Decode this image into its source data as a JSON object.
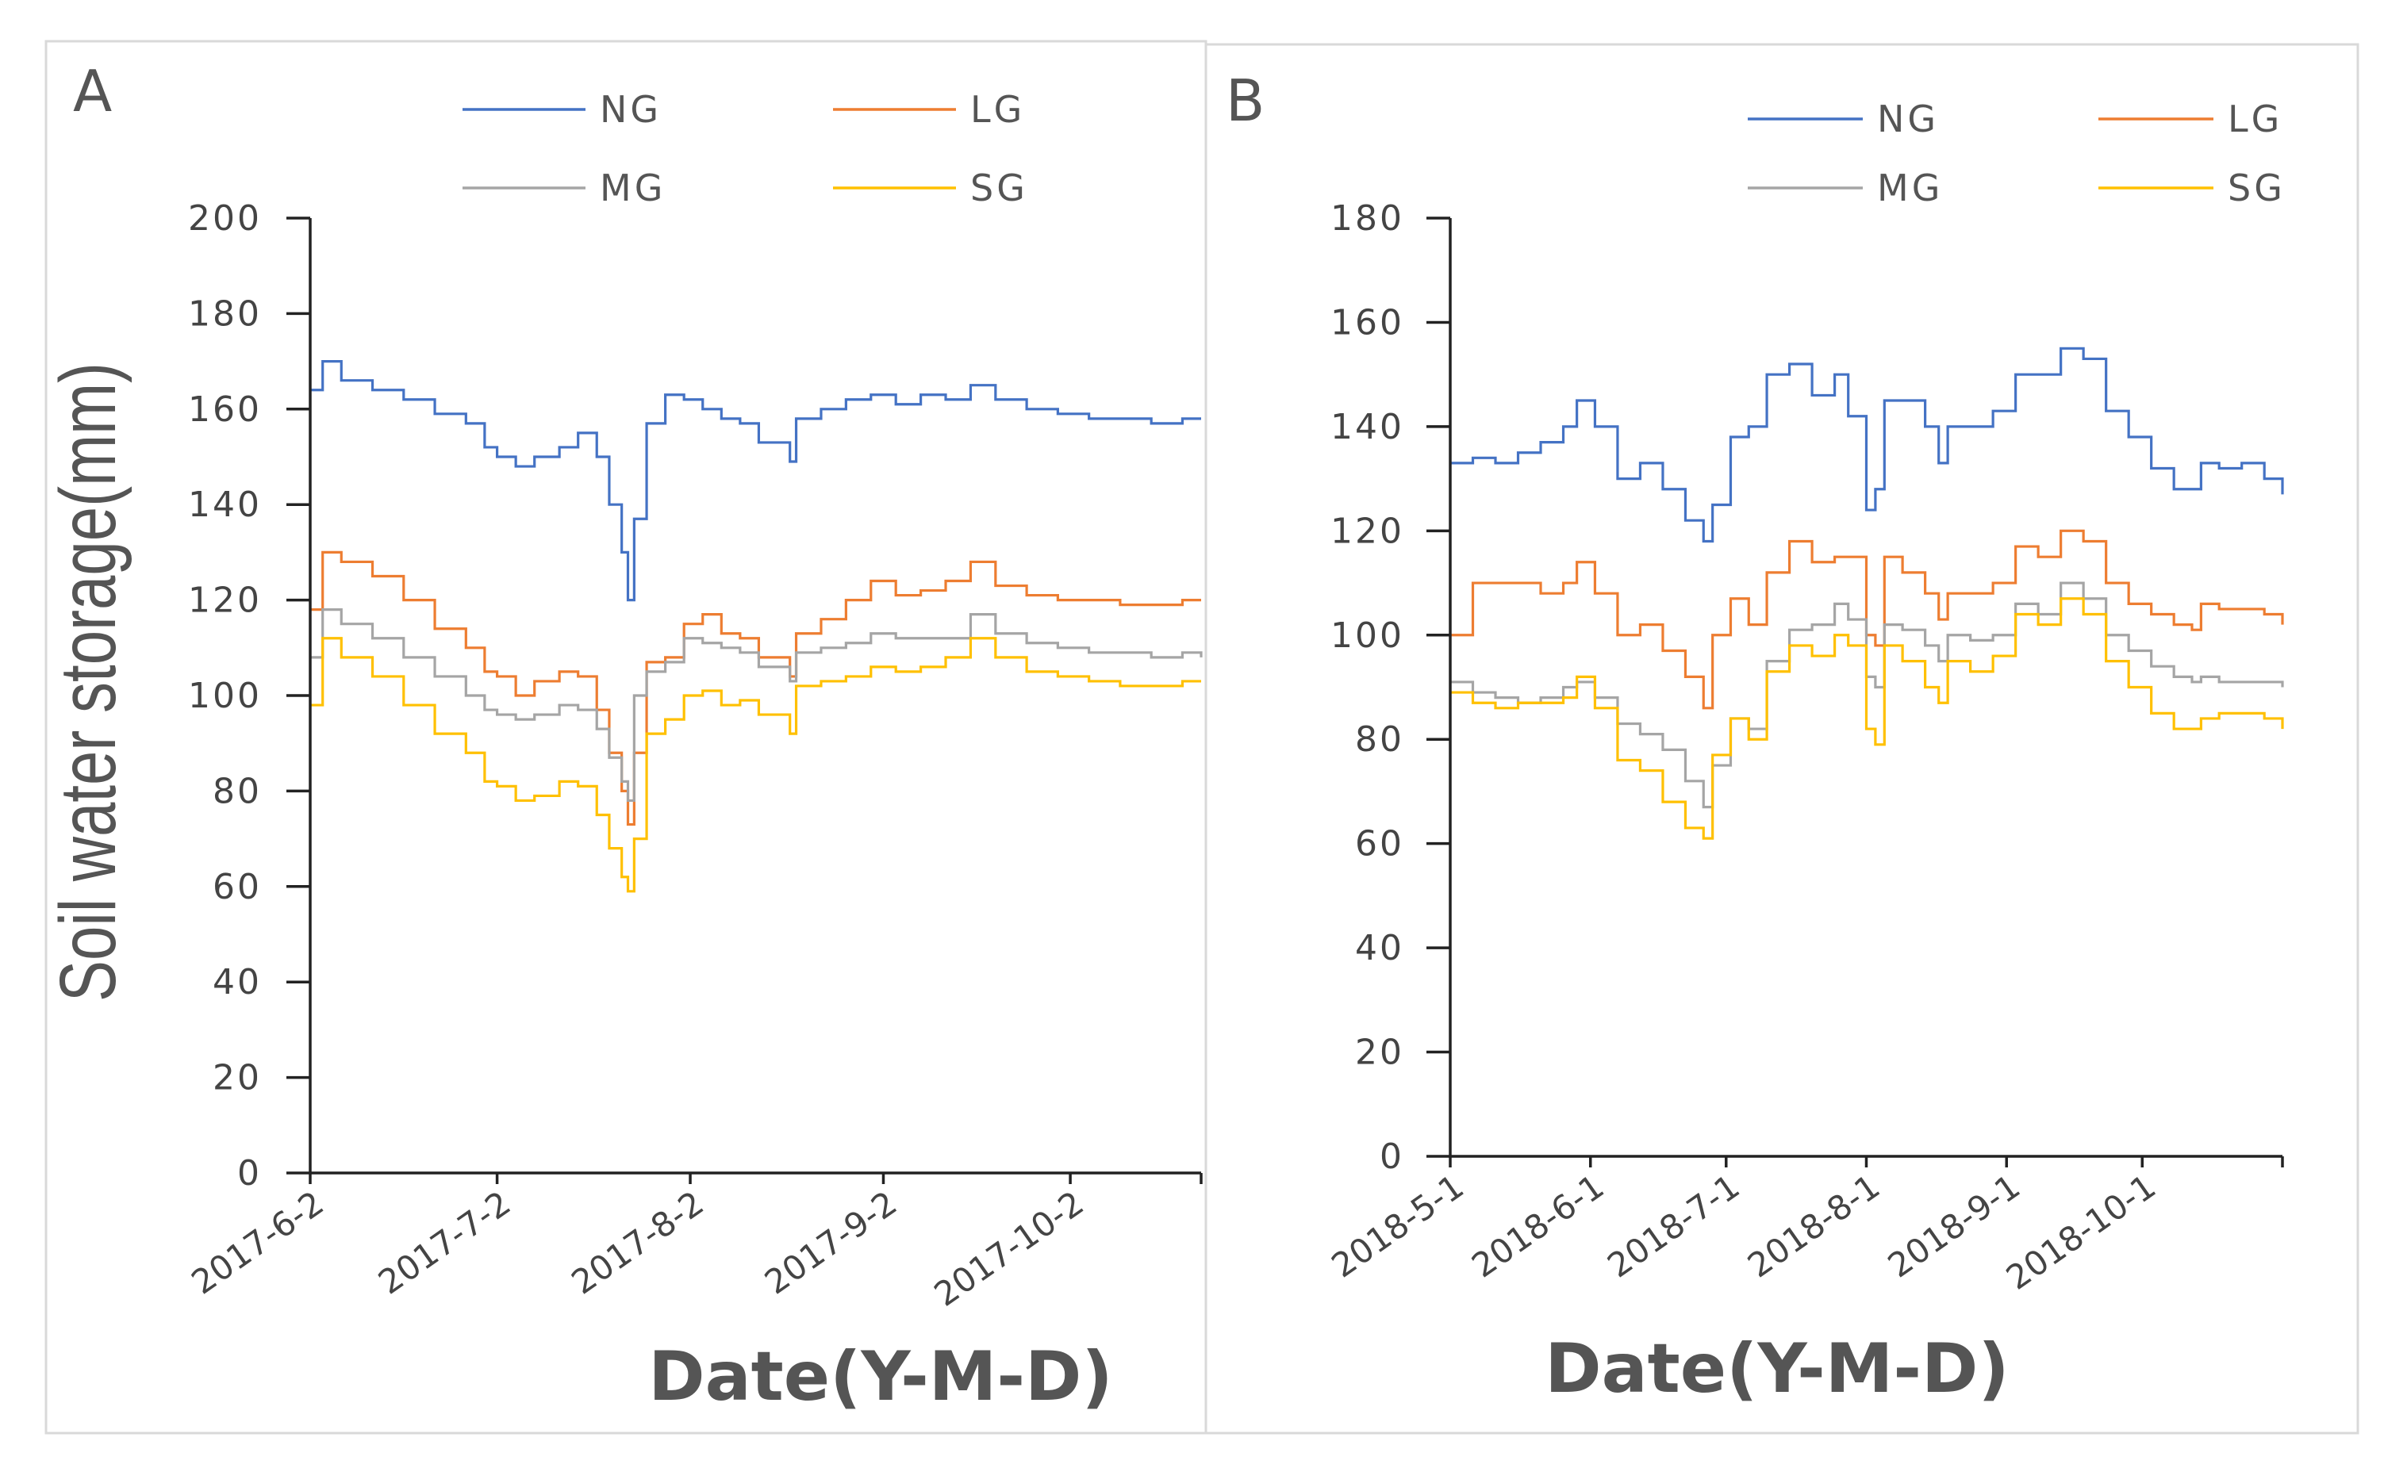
{
  "colors": {
    "NG": "#4472C4",
    "LG": "#ED7D31",
    "MG": "#A5A5A5",
    "SG": "#FFC000"
  },
  "chart_data": [
    {
      "type": "line",
      "panel_label": "A",
      "ylabel": "Soil water storage(mm)",
      "xlabel": "Date(Y-M-D)",
      "ylim": [
        0,
        200
      ],
      "yticks": [
        0,
        20,
        40,
        60,
        80,
        100,
        120,
        140,
        160,
        180,
        200
      ],
      "x_unit": "days since 2017-6-2",
      "xlim": [
        0,
        143
      ],
      "xticks": [
        {
          "label": "2017-6-2",
          "day": 0
        },
        {
          "label": "2017-7-2",
          "day": 30
        },
        {
          "label": "2017-8-2",
          "day": 61
        },
        {
          "label": "2017-9-2",
          "day": 92
        },
        {
          "label": "2017-10-2",
          "day": 122
        }
      ],
      "legend": [
        "NG",
        "LG",
        "MG",
        "SG"
      ],
      "legend_position": "top",
      "x": [
        0,
        2,
        5,
        10,
        15,
        20,
        25,
        28,
        30,
        33,
        36,
        40,
        43,
        46,
        48,
        50,
        51,
        52,
        54,
        57,
        60,
        63,
        66,
        69,
        72,
        77,
        78,
        82,
        86,
        90,
        94,
        98,
        102,
        106,
        110,
        115,
        120,
        125,
        130,
        135,
        140,
        143
      ],
      "series": [
        {
          "name": "NG",
          "values": [
            164,
            170,
            166,
            164,
            162,
            159,
            157,
            152,
            150,
            148,
            150,
            152,
            155,
            150,
            140,
            130,
            120,
            137,
            157,
            163,
            162,
            160,
            158,
            157,
            153,
            149,
            158,
            160,
            162,
            163,
            161,
            163,
            162,
            165,
            162,
            160,
            159,
            158,
            158,
            157,
            158,
            158
          ]
        },
        {
          "name": "LG",
          "values": [
            118,
            130,
            128,
            125,
            120,
            114,
            110,
            105,
            104,
            100,
            103,
            105,
            104,
            97,
            88,
            80,
            73,
            88,
            107,
            108,
            115,
            117,
            113,
            112,
            108,
            104,
            113,
            116,
            120,
            124,
            121,
            122,
            124,
            128,
            123,
            121,
            120,
            120,
            119,
            119,
            120,
            120
          ]
        },
        {
          "name": "MG",
          "values": [
            108,
            118,
            115,
            112,
            108,
            104,
            100,
            97,
            96,
            95,
            96,
            98,
            97,
            93,
            87,
            82,
            78,
            100,
            105,
            107,
            112,
            111,
            110,
            109,
            106,
            103,
            109,
            110,
            111,
            113,
            112,
            112,
            112,
            117,
            113,
            111,
            110,
            109,
            109,
            108,
            109,
            108
          ]
        },
        {
          "name": "SG",
          "values": [
            98,
            112,
            108,
            104,
            98,
            92,
            88,
            82,
            81,
            78,
            79,
            82,
            81,
            75,
            68,
            62,
            59,
            70,
            92,
            95,
            100,
            101,
            98,
            99,
            96,
            92,
            102,
            103,
            104,
            106,
            105,
            106,
            108,
            112,
            108,
            105,
            104,
            103,
            102,
            102,
            103,
            103
          ]
        }
      ]
    },
    {
      "type": "line",
      "panel_label": "B",
      "ylabel": "",
      "xlabel": "Date(Y-M-D)",
      "ylim": [
        0,
        180
      ],
      "yticks": [
        0,
        20,
        40,
        60,
        80,
        100,
        120,
        140,
        160,
        180
      ],
      "x_unit": "days since 2018-5-1",
      "xlim": [
        0,
        184
      ],
      "xticks": [
        {
          "label": "2018-5-1",
          "day": 0
        },
        {
          "label": "2018-6-1",
          "day": 31
        },
        {
          "label": "2018-7-1",
          "day": 61
        },
        {
          "label": "2018-8-1",
          "day": 92
        },
        {
          "label": "2018-9-1",
          "day": 123
        },
        {
          "label": "2018-10-1",
          "day": 153
        }
      ],
      "legend": [
        "NG",
        "LG",
        "MG",
        "SG"
      ],
      "legend_position": "top",
      "x": [
        0,
        5,
        10,
        15,
        20,
        25,
        28,
        32,
        37,
        42,
        47,
        52,
        56,
        58,
        62,
        66,
        70,
        75,
        80,
        85,
        88,
        92,
        94,
        96,
        100,
        105,
        108,
        110,
        115,
        120,
        125,
        130,
        135,
        140,
        145,
        150,
        155,
        160,
        164,
        166,
        170,
        175,
        180,
        184
      ],
      "series": [
        {
          "name": "NG",
          "values": [
            133,
            134,
            133,
            135,
            137,
            140,
            145,
            140,
            130,
            133,
            128,
            122,
            118,
            125,
            138,
            140,
            150,
            152,
            146,
            150,
            142,
            124,
            128,
            145,
            145,
            140,
            133,
            140,
            140,
            143,
            150,
            150,
            155,
            153,
            143,
            138,
            132,
            128,
            128,
            133,
            132,
            133,
            130,
            127
          ]
        },
        {
          "name": "LG",
          "values": [
            100,
            110,
            110,
            110,
            108,
            110,
            114,
            108,
            100,
            102,
            97,
            92,
            86,
            100,
            107,
            102,
            112,
            118,
            114,
            115,
            115,
            100,
            98,
            115,
            112,
            108,
            103,
            108,
            108,
            110,
            117,
            115,
            120,
            118,
            110,
            106,
            104,
            102,
            101,
            106,
            105,
            105,
            104,
            102
          ]
        },
        {
          "name": "MG",
          "values": [
            91,
            89,
            88,
            87,
            88,
            90,
            91,
            88,
            83,
            81,
            78,
            72,
            67,
            75,
            84,
            82,
            95,
            101,
            102,
            106,
            103,
            92,
            90,
            102,
            101,
            98,
            95,
            100,
            99,
            100,
            106,
            104,
            110,
            107,
            100,
            97,
            94,
            92,
            91,
            92,
            91,
            91,
            91,
            90
          ]
        },
        {
          "name": "SG",
          "values": [
            89,
            87,
            86,
            87,
            87,
            88,
            92,
            86,
            76,
            74,
            68,
            63,
            61,
            77,
            84,
            80,
            93,
            98,
            96,
            100,
            98,
            82,
            79,
            98,
            95,
            90,
            87,
            95,
            93,
            96,
            104,
            102,
            107,
            104,
            95,
            90,
            85,
            82,
            82,
            84,
            85,
            85,
            84,
            82
          ]
        }
      ]
    }
  ]
}
